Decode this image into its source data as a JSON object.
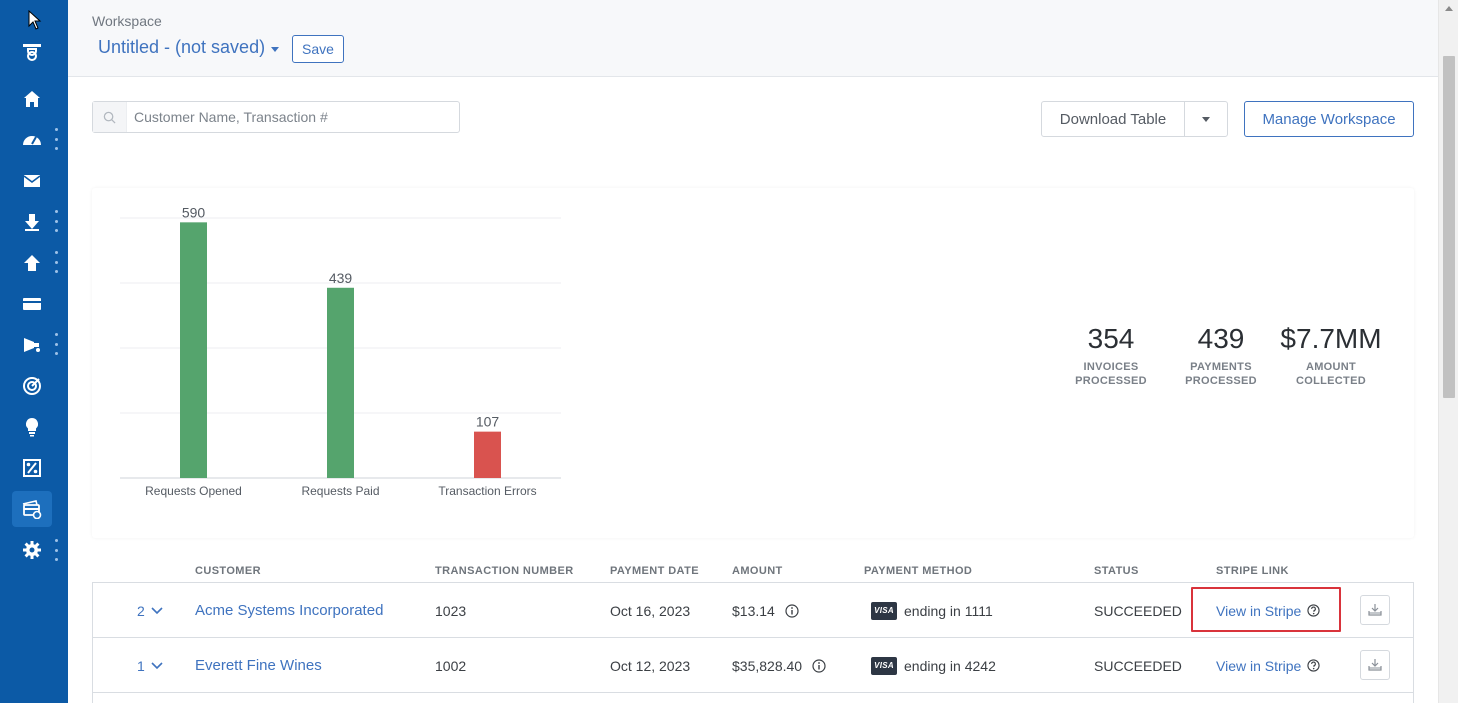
{
  "header": {
    "workspace_label": "Workspace",
    "workspace_title": "Untitled - (not saved)",
    "save_label": "Save"
  },
  "sidebar": {
    "items": [
      {
        "icon": "filter-icon"
      },
      {
        "icon": "home-icon"
      },
      {
        "icon": "dashboard-gauge-icon"
      },
      {
        "icon": "mail-icon"
      },
      {
        "icon": "download-arrow-icon"
      },
      {
        "icon": "upload-arrow-icon"
      },
      {
        "icon": "credit-card-icon"
      },
      {
        "icon": "megaphone-icon"
      },
      {
        "icon": "target-icon"
      },
      {
        "icon": "lightbulb-icon"
      },
      {
        "icon": "percent-icon"
      },
      {
        "icon": "payments-icon",
        "active": true
      },
      {
        "icon": "gear-icon"
      }
    ]
  },
  "toolbar": {
    "search_placeholder": "Customer Name, Transaction #",
    "download_label": "Download Table",
    "manage_label": "Manage Workspace"
  },
  "chart_data": {
    "type": "bar",
    "categories": [
      "Requests Opened",
      "Requests Paid",
      "Transaction Errors"
    ],
    "values": [
      590,
      439,
      107
    ],
    "value_labels": [
      "590",
      "439",
      "107"
    ],
    "colors": [
      "#55a46d",
      "#55a46d",
      "#d9534f"
    ],
    "ylim": [
      0,
      600
    ],
    "grid": true,
    "title": "",
    "xlabel": "",
    "ylabel": ""
  },
  "stats": [
    {
      "value": "354",
      "label_line1": "INVOICES",
      "label_line2": "PROCESSED"
    },
    {
      "value": "439",
      "label_line1": "PAYMENTS",
      "label_line2": "PROCESSED"
    },
    {
      "value": "$7.7MM",
      "label_line1": "AMOUNT",
      "label_line2": "COLLECTED"
    }
  ],
  "table": {
    "columns": [
      "CUSTOMER",
      "TRANSACTION NUMBER",
      "PAYMENT DATE",
      "AMOUNT",
      "PAYMENT METHOD",
      "STATUS",
      "STRIPE LINK"
    ],
    "rows": [
      {
        "count": "2",
        "customer": "Acme Systems Incorporated",
        "transaction": "1023",
        "date": "Oct 16, 2023",
        "amount": "$13.14",
        "card_brand": "VISA",
        "method": "ending in 1111",
        "status": "SUCCEEDED",
        "stripe": "View in Stripe"
      },
      {
        "count": "1",
        "customer": "Everett Fine Wines",
        "transaction": "1002",
        "date": "Oct 12, 2023",
        "amount": "$35,828.40",
        "card_brand": "VISA",
        "method": "ending in 4242",
        "status": "SUCCEEDED",
        "stripe": "View in Stripe"
      }
    ]
  }
}
